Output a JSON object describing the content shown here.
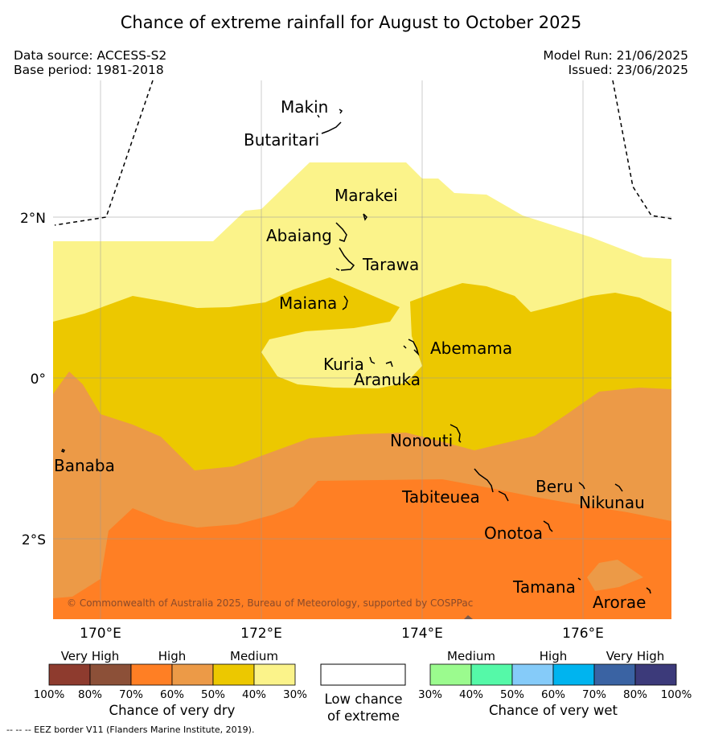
{
  "title": "Chance of extreme rainfall for August to October 2025",
  "meta": {
    "data_source": "Data source: ACCESS-S2",
    "base_period": "Base period: 1981-2018",
    "model_run": "Model Run: 21/06/2025",
    "issued": "Issued: 23/06/2025"
  },
  "map": {
    "lat_ticks": [
      "2°N",
      "0°",
      "2°S"
    ],
    "lon_ticks": [
      "170°E",
      "172°E",
      "174°E",
      "176°E"
    ],
    "places": [
      "Makin",
      "Butaritari",
      "Marakei",
      "Abaiang",
      "Tarawa",
      "Maiana",
      "Abemama",
      "Kuria",
      "Aranuka",
      "Nonouti",
      "Banaba",
      "Tabiteuea",
      "Beru",
      "Nikunau",
      "Onotoa",
      "Tamana",
      "Arorae"
    ],
    "copyright": "© Commonwealth of Australia 2025, Bureau of Meteorology, supported by COSPPac",
    "colors": {
      "dry_medium_light": "#fbf38a",
      "dry_medium_dark": "#ecc800",
      "dry_high_light": "#ec9a47",
      "dry_high_dark": "#ff7f24"
    }
  },
  "legend": {
    "dry": {
      "categories": [
        "Very High",
        "High",
        "Medium"
      ],
      "colors": [
        "#8e3b2e",
        "#8c5038",
        "#ff7f24",
        "#ec9a47",
        "#ecc800",
        "#fbf38a"
      ],
      "ticks": [
        "100%",
        "80%",
        "70%",
        "60%",
        "50%",
        "40%",
        "30%"
      ],
      "title": "Chance of very dry"
    },
    "low": {
      "title_line1": "Low chance",
      "title_line2": "of extreme"
    },
    "wet": {
      "categories": [
        "Medium",
        "High",
        "Very High"
      ],
      "colors": [
        "#9bfb8e",
        "#55f9a8",
        "#85cbf9",
        "#00b4ef",
        "#3a63a3",
        "#3c3a7a"
      ],
      "ticks": [
        "30%",
        "40%",
        "50%",
        "60%",
        "70%",
        "80%",
        "100%"
      ],
      "title": "Chance of very wet"
    }
  },
  "footer": "--  --  -- EEZ border V11 (Flanders Marine Institute, 2019)."
}
